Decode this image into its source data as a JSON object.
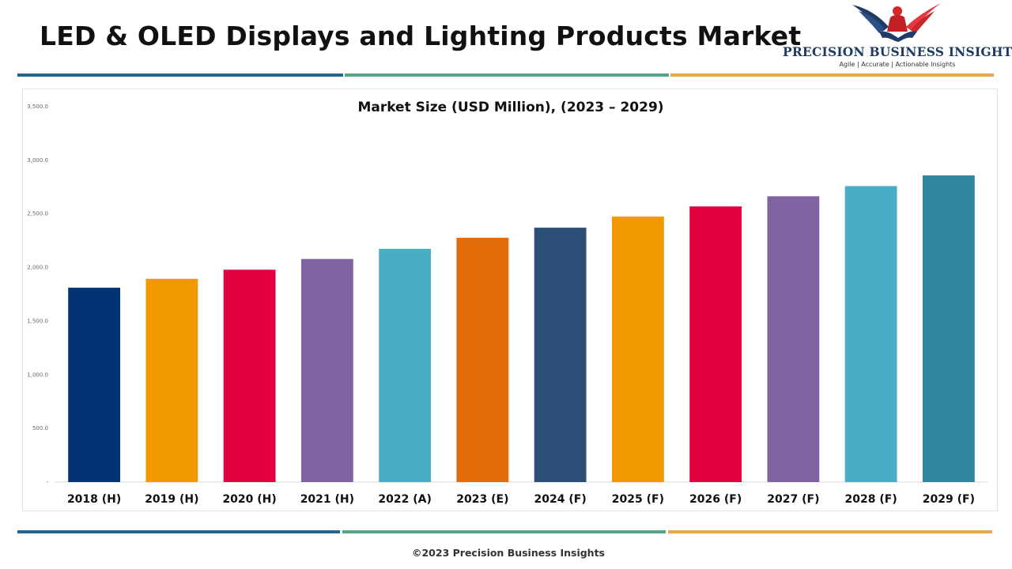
{
  "header": {
    "title": "LED & OLED Displays and Lighting Products Market"
  },
  "logo": {
    "name": "PRECISION BUSINESS INSIGHTS",
    "tagline": "Agile | Accurate | Actionable Insights",
    "icon": "eagle-handshake-icon"
  },
  "colors": {
    "stripe_blue": "#1e6a96",
    "stripe_green": "#4aa884",
    "stripe_orange": "#efa356"
  },
  "chart_data": {
    "type": "bar",
    "title": "Market Size (USD Million), (2023 – 2029)",
    "xlabel": "",
    "ylabel": "",
    "ylim": [
      0,
      3500
    ],
    "yticks": [
      0,
      500,
      1000,
      1500,
      2000,
      2500,
      3000,
      3500
    ],
    "ytick_labels": [
      "-",
      "500.0",
      "1,000.0",
      "1,500.0",
      "2,000.0",
      "2,500.0",
      "3,000.0",
      "3,500.0"
    ],
    "grid": false,
    "categories": [
      "2018 (H)",
      "2019 (H)",
      "2020 (H)",
      "2021 (H)",
      "2022 (A)",
      "2023 (E)",
      "2024 (F)",
      "2025 (F)",
      "2026 (F)",
      "2027 (F)",
      "2028 (F)",
      "2029 (F)"
    ],
    "values": [
      1812,
      1895,
      1980,
      2080,
      2175,
      2278,
      2372,
      2475,
      2570,
      2665,
      2760,
      2860
    ],
    "bar_colors": [
      "#023373",
      "#f29800",
      "#e2003f",
      "#8064a2",
      "#4bacc6",
      "#e26b0a",
      "#2c4d75",
      "#f29800",
      "#e2003f",
      "#8064a2",
      "#4bacc6",
      "#31859c"
    ]
  },
  "footer": {
    "copyright": "©2023 Precision Business Insights"
  }
}
